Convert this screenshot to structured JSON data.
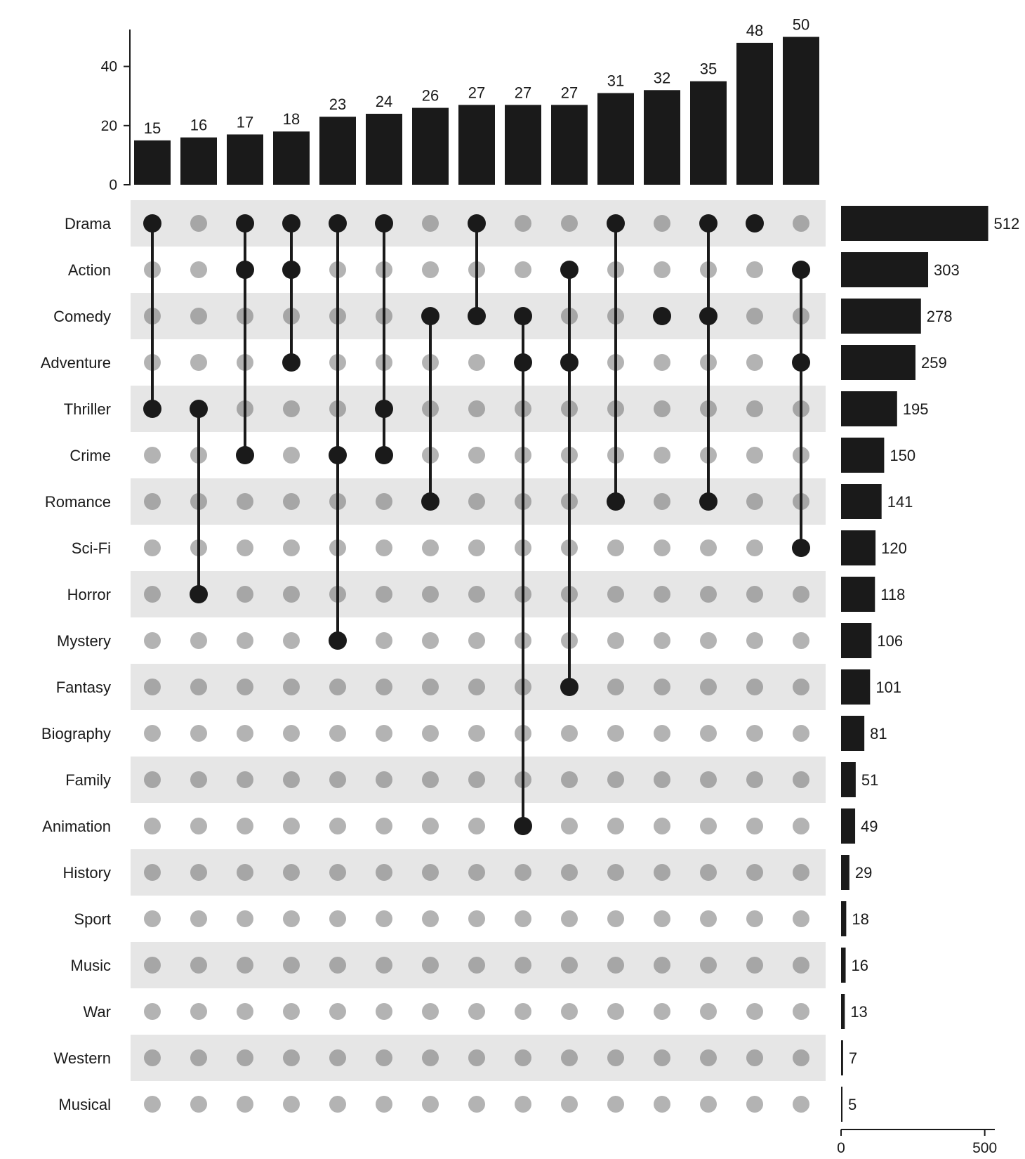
{
  "chart_data": {
    "type": "bar",
    "subtype": "upset",
    "title": "",
    "xlabel": "",
    "ylabel": "",
    "colors": {
      "bar": "#1a1a1a",
      "active_dot": "#1a1a1a",
      "inactive_dot": "#b3b3b3",
      "inactive_dot_shaded_row": "#a6a6a6",
      "row_shade": "#e6e6e6"
    },
    "sets": [
      "Drama",
      "Action",
      "Comedy",
      "Adventure",
      "Thriller",
      "Crime",
      "Romance",
      "Sci-Fi",
      "Horror",
      "Mystery",
      "Fantasy",
      "Biography",
      "Family",
      "Animation",
      "History",
      "Sport",
      "Music",
      "War",
      "Western",
      "Musical"
    ],
    "set_sizes": [
      512,
      303,
      278,
      259,
      195,
      150,
      141,
      120,
      118,
      106,
      101,
      81,
      51,
      49,
      29,
      18,
      16,
      13,
      7,
      5
    ],
    "set_size_axis": {
      "ticks": [
        0,
        500
      ],
      "range": [
        0,
        540
      ]
    },
    "intersections": [
      {
        "sets": [
          "Drama",
          "Thriller"
        ],
        "value": 15
      },
      {
        "sets": [
          "Thriller",
          "Horror"
        ],
        "value": 16
      },
      {
        "sets": [
          "Drama",
          "Action",
          "Crime"
        ],
        "value": 17
      },
      {
        "sets": [
          "Drama",
          "Action",
          "Adventure"
        ],
        "value": 18
      },
      {
        "sets": [
          "Drama",
          "Crime",
          "Mystery"
        ],
        "value": 23
      },
      {
        "sets": [
          "Drama",
          "Thriller",
          "Crime"
        ],
        "value": 24
      },
      {
        "sets": [
          "Comedy",
          "Romance"
        ],
        "value": 26
      },
      {
        "sets": [
          "Drama",
          "Comedy"
        ],
        "value": 27
      },
      {
        "sets": [
          "Comedy",
          "Adventure",
          "Animation"
        ],
        "value": 27
      },
      {
        "sets": [
          "Action",
          "Adventure",
          "Fantasy"
        ],
        "value": 27
      },
      {
        "sets": [
          "Drama",
          "Romance"
        ],
        "value": 31
      },
      {
        "sets": [
          "Comedy"
        ],
        "value": 32
      },
      {
        "sets": [
          "Drama",
          "Comedy",
          "Romance"
        ],
        "value": 35
      },
      {
        "sets": [
          "Drama"
        ],
        "value": 48
      },
      {
        "sets": [
          "Action",
          "Adventure",
          "Sci-Fi"
        ],
        "value": 50
      }
    ],
    "intersection_axis": {
      "ticks": [
        0,
        20,
        40
      ],
      "range": [
        0,
        52
      ]
    },
    "labels": {
      "intersection_ticks": [
        "0",
        "20",
        "40"
      ],
      "intersection_values": [
        "15",
        "16",
        "17",
        "18",
        "23",
        "24",
        "26",
        "27",
        "27",
        "27",
        "31",
        "32",
        "35",
        "48",
        "50"
      ],
      "set_size_ticks": [
        "0",
        "500"
      ],
      "set_size_values": [
        "512",
        "303",
        "278",
        "259",
        "195",
        "150",
        "141",
        "120",
        "118",
        "106",
        "101",
        "81",
        "51",
        "49",
        "29",
        "18",
        "16",
        "13",
        "7",
        "5"
      ]
    }
  }
}
